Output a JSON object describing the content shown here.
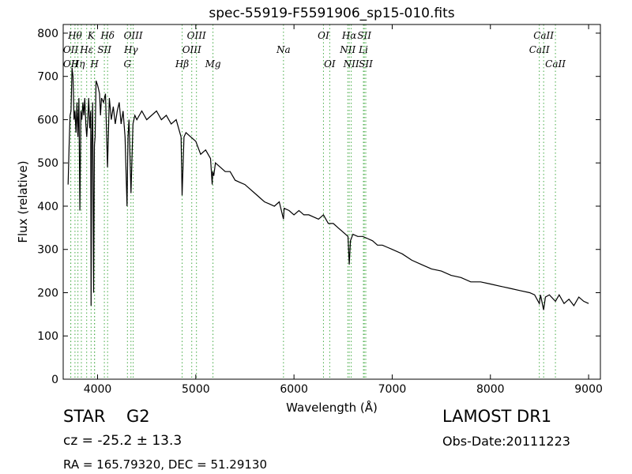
{
  "chart_data": {
    "type": "line",
    "title": "spec-55919-F5591906_sp15-010.fits",
    "xlabel": "Wavelength (Å)",
    "ylabel": "Flux (relative)",
    "xlim": [
      3650,
      9120
    ],
    "ylim": [
      0,
      820
    ],
    "xticks": [
      4000,
      5000,
      6000,
      7000,
      8000,
      9000
    ],
    "yticks": [
      0,
      100,
      200,
      300,
      400,
      500,
      600,
      700,
      800
    ],
    "grid": false,
    "series": [
      {
        "x": [
          3700,
          3710,
          3720,
          3730,
          3740,
          3750,
          3760,
          3770,
          3780,
          3790,
          3800,
          3810,
          3820,
          3830,
          3840,
          3850,
          3860,
          3870,
          3880,
          3890,
          3900,
          3910,
          3920,
          3930,
          3934,
          3940,
          3950,
          3960,
          3968,
          3975,
          3985,
          4000,
          4010,
          4020,
          4030,
          4040,
          4060,
          4080,
          4101,
          4120,
          4140,
          4160,
          4180,
          4200,
          4220,
          4240,
          4260,
          4280,
          4300,
          4310,
          4320,
          4340,
          4360,
          4380,
          4400,
          4450,
          4500,
          4550,
          4600,
          4650,
          4700,
          4750,
          4800,
          4850,
          4861,
          4880,
          4900,
          4950,
          5000,
          5050,
          5100,
          5150,
          5167,
          5172,
          5183,
          5200,
          5250,
          5300,
          5350,
          5400,
          5450,
          5500,
          5550,
          5600,
          5650,
          5700,
          5750,
          5800,
          5850,
          5893,
          5900,
          5950,
          6000,
          6050,
          6100,
          6150,
          6200,
          6250,
          6300,
          6350,
          6400,
          6450,
          6500,
          6550,
          6563,
          6575,
          6600,
          6650,
          6700,
          6750,
          6800,
          6850,
          6900,
          6950,
          7000,
          7100,
          7200,
          7300,
          7400,
          7500,
          7600,
          7700,
          7800,
          7900,
          8000,
          8100,
          8200,
          8300,
          8400,
          8450,
          8498,
          8510,
          8542,
          8560,
          8600,
          8662,
          8700,
          8750,
          8800,
          8850,
          8900,
          8950,
          9000
        ],
        "y": [
          450,
          540,
          610,
          620,
          720,
          700,
          600,
          620,
          570,
          640,
          560,
          650,
          390,
          620,
          600,
          640,
          610,
          650,
          590,
          560,
          600,
          650,
          580,
          620,
          170,
          540,
          640,
          200,
          540,
          560,
          690,
          680,
          670,
          660,
          610,
          650,
          640,
          660,
          490,
          650,
          600,
          630,
          590,
          620,
          640,
          590,
          620,
          560,
          400,
          560,
          600,
          430,
          590,
          610,
          600,
          620,
          600,
          610,
          620,
          600,
          610,
          590,
          600,
          560,
          425,
          560,
          570,
          560,
          550,
          520,
          530,
          510,
          450,
          480,
          470,
          500,
          490,
          480,
          480,
          460,
          455,
          450,
          440,
          430,
          420,
          410,
          405,
          400,
          410,
          370,
          395,
          390,
          380,
          390,
          380,
          380,
          375,
          370,
          380,
          360,
          360,
          350,
          340,
          330,
          265,
          320,
          335,
          330,
          330,
          325,
          320,
          310,
          310,
          305,
          300,
          290,
          275,
          265,
          255,
          250,
          240,
          235,
          225,
          225,
          220,
          215,
          210,
          205,
          200,
          195,
          175,
          195,
          160,
          190,
          195,
          180,
          195,
          175,
          185,
          170,
          190,
          180,
          175
        ]
      }
    ],
    "lines": [
      {
        "x": 3727,
        "label": "OII",
        "row": 2
      },
      {
        "x": 3727,
        "label": "OII",
        "row": 3
      },
      {
        "x": 3770,
        "label": "Hθ",
        "row": 1
      },
      {
        "x": 3800,
        "label": "Hη",
        "row": 3
      },
      {
        "x": 3835,
        "label": "",
        "row": 0
      },
      {
        "x": 3889,
        "label": "Hε",
        "row": 2
      },
      {
        "x": 3934,
        "label": "K",
        "row": 1
      },
      {
        "x": 3969,
        "label": "H",
        "row": 3
      },
      {
        "x": 3969,
        "label": "",
        "row": 0
      },
      {
        "x": 4069,
        "label": "SII",
        "row": 2
      },
      {
        "x": 4102,
        "label": "Hδ",
        "row": 1
      },
      {
        "x": 4304,
        "label": "G",
        "row": 3
      },
      {
        "x": 4340,
        "label": "Hγ",
        "row": 2
      },
      {
        "x": 4363,
        "label": "OIII",
        "row": 1
      },
      {
        "x": 4861,
        "label": "Hβ",
        "row": 3
      },
      {
        "x": 4959,
        "label": "OIII",
        "row": 2
      },
      {
        "x": 5007,
        "label": "OIII",
        "row": 1
      },
      {
        "x": 5175,
        "label": "Mg",
        "row": 3
      },
      {
        "x": 5893,
        "label": "Na",
        "row": 2
      },
      {
        "x": 6300,
        "label": "OI",
        "row": 1
      },
      {
        "x": 6364,
        "label": "OI",
        "row": 3
      },
      {
        "x": 6548,
        "label": "NII",
        "row": 2
      },
      {
        "x": 6563,
        "label": "Hα",
        "row": 1
      },
      {
        "x": 6583,
        "label": "NII",
        "row": 3
      },
      {
        "x": 6707,
        "label": "Li",
        "row": 2
      },
      {
        "x": 6716,
        "label": "SII",
        "row": 1
      },
      {
        "x": 6731,
        "label": "SII",
        "row": 3
      },
      {
        "x": 8498,
        "label": "CaII",
        "row": 2
      },
      {
        "x": 8542,
        "label": "CaII",
        "row": 1
      },
      {
        "x": 8662,
        "label": "CaII",
        "row": 3
      }
    ]
  },
  "info": {
    "class_label": "STAR",
    "subclass": "G2",
    "cz": "cz = -25.2 ± 13.3",
    "coords": "RA = 165.79320, DEC = 51.29130",
    "survey": "LAMOST DR1",
    "obs_date": "Obs-Date:20111223"
  },
  "colors": {
    "line": "#000000",
    "marker_lines": "#44aa44"
  }
}
